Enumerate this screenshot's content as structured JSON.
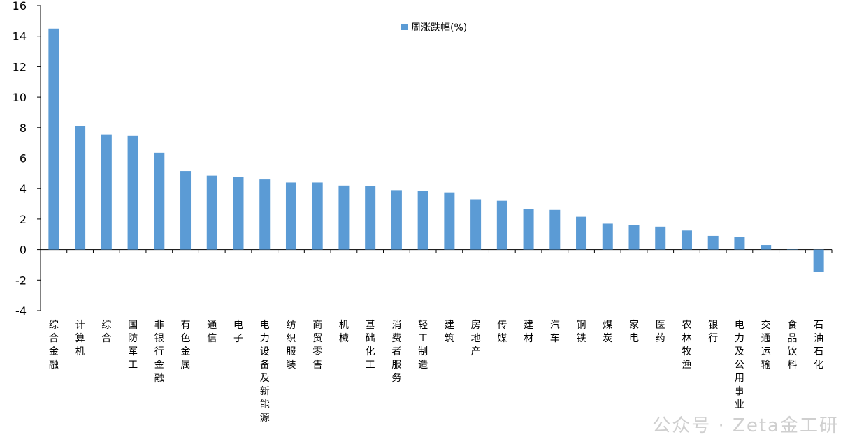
{
  "chart_data": {
    "type": "bar",
    "categories": [
      "综合金融",
      "计算机",
      "综合",
      "国防军工",
      "非银行金融",
      "有色金属",
      "通信",
      "电子",
      "电力设备及新能源",
      "纺织服装",
      "商贸零售",
      "机械",
      "基础化工",
      "消费者服务",
      "轻工制造",
      "建筑",
      "房地产",
      "传媒",
      "建材",
      "汽车",
      "钢铁",
      "煤炭",
      "家电",
      "医药",
      "农林牧渔",
      "银行",
      "电力及公用事业",
      "交通运输",
      "食品饮料",
      "石油石化"
    ],
    "series": [
      {
        "name": "周涨跌幅(%)",
        "values": [
          14.5,
          8.1,
          7.55,
          7.45,
          6.35,
          5.15,
          4.85,
          4.75,
          4.6,
          4.4,
          4.4,
          4.2,
          4.15,
          3.9,
          3.85,
          3.75,
          3.3,
          3.2,
          2.65,
          2.6,
          2.15,
          1.7,
          1.6,
          1.5,
          1.25,
          0.9,
          0.85,
          0.3,
          0.02,
          -1.45
        ]
      }
    ],
    "ylim": [
      -4,
      16
    ],
    "yticks": [
      -4,
      -2,
      0,
      2,
      4,
      6,
      8,
      10,
      12,
      14,
      16
    ],
    "grid": false,
    "legend_position": "top-center",
    "colors": {
      "bar": "#5B9BD5",
      "axis": "#000000"
    }
  },
  "watermark": {
    "text": "公众号 · Zeta金工研"
  }
}
